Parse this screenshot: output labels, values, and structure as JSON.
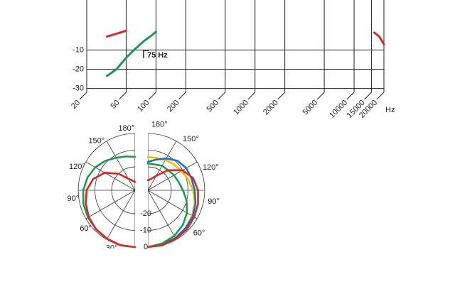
{
  "chart_data": [
    {
      "type": "line",
      "xscale": "log",
      "xlim": [
        20,
        20000
      ],
      "xticks": [
        20,
        50,
        100,
        200,
        500,
        1000,
        2000,
        5000,
        10000,
        15000,
        20000
      ],
      "xlabel": "Hz",
      "ylim": [
        -32,
        16
      ],
      "yticks": [
        -10,
        -20,
        -30
      ],
      "grid": true,
      "series": [
        {
          "color": "#1d9a4c",
          "x": [
            32,
            40,
            50,
            60,
            75,
            90,
            100
          ],
          "values": [
            -23.5,
            -20,
            -14,
            -10,
            -5.5,
            -2.5,
            -0.5
          ]
        },
        {
          "color": "#d62828",
          "x": [
            32,
            40,
            50,
            1000,
            16000,
            18000,
            20000
          ],
          "values": [
            -3,
            -1.5,
            0,
            null,
            -1,
            -3,
            -7
          ]
        }
      ],
      "annotations": [
        {
          "text": "75 Hz",
          "x": 75
        }
      ]
    },
    {
      "type": "polar",
      "angles": [
        0,
        15,
        30,
        45,
        60,
        75,
        90,
        105,
        120,
        135,
        150,
        165,
        180
      ],
      "angle_ticks": [
        {
          "value": 180,
          "label": "180°"
        },
        {
          "value": 150,
          "label": "150°"
        },
        {
          "value": 120,
          "label": "120°"
        },
        {
          "value": 90,
          "label": "90°"
        },
        {
          "value": 60,
          "label": "60°"
        },
        {
          "value": 30,
          "label": "30°"
        }
      ],
      "rlim": [
        -34,
        0
      ],
      "rticks": [
        -20,
        -10,
        0
      ],
      "rtick_side": "right",
      "series": [
        {
          "side": "left",
          "color": "#1d9a4c",
          "values": [
            0,
            0,
            -0.5,
            -1,
            -1.5,
            -2,
            -3,
            -4.5,
            -6.5,
            -9,
            -11.5,
            -13,
            -14
          ]
        },
        {
          "side": "left",
          "color": "#d62828",
          "values": [
            0,
            0,
            -0.5,
            -1,
            -2,
            -3.5,
            -5,
            -8,
            -13,
            -20,
            -26,
            -28,
            -29
          ]
        },
        {
          "side": "right",
          "color": "#f2c200",
          "values": [
            0,
            -0.5,
            -1,
            -2,
            -3.5,
            -5,
            -7,
            -9,
            -11,
            -12,
            -13,
            -14,
            -14
          ]
        },
        {
          "side": "right",
          "color": "#1f6fc4",
          "values": [
            0,
            -0.5,
            -1,
            -2,
            -3,
            -4.5,
            -6,
            -7,
            -7.5,
            -9,
            -12,
            -15,
            -17
          ]
        },
        {
          "side": "right",
          "color": "#1d9a4c",
          "values": [
            0,
            -1,
            -2.5,
            -4.5,
            -7,
            -10,
            -13,
            -15,
            -16,
            -17,
            -17,
            -18,
            -18
          ]
        },
        {
          "side": "right",
          "color": "#d62828",
          "values": [
            0,
            0,
            -0.5,
            -1,
            -2,
            -3,
            -4,
            -6,
            -10,
            -17,
            -24,
            -27,
            -28
          ]
        }
      ]
    }
  ]
}
